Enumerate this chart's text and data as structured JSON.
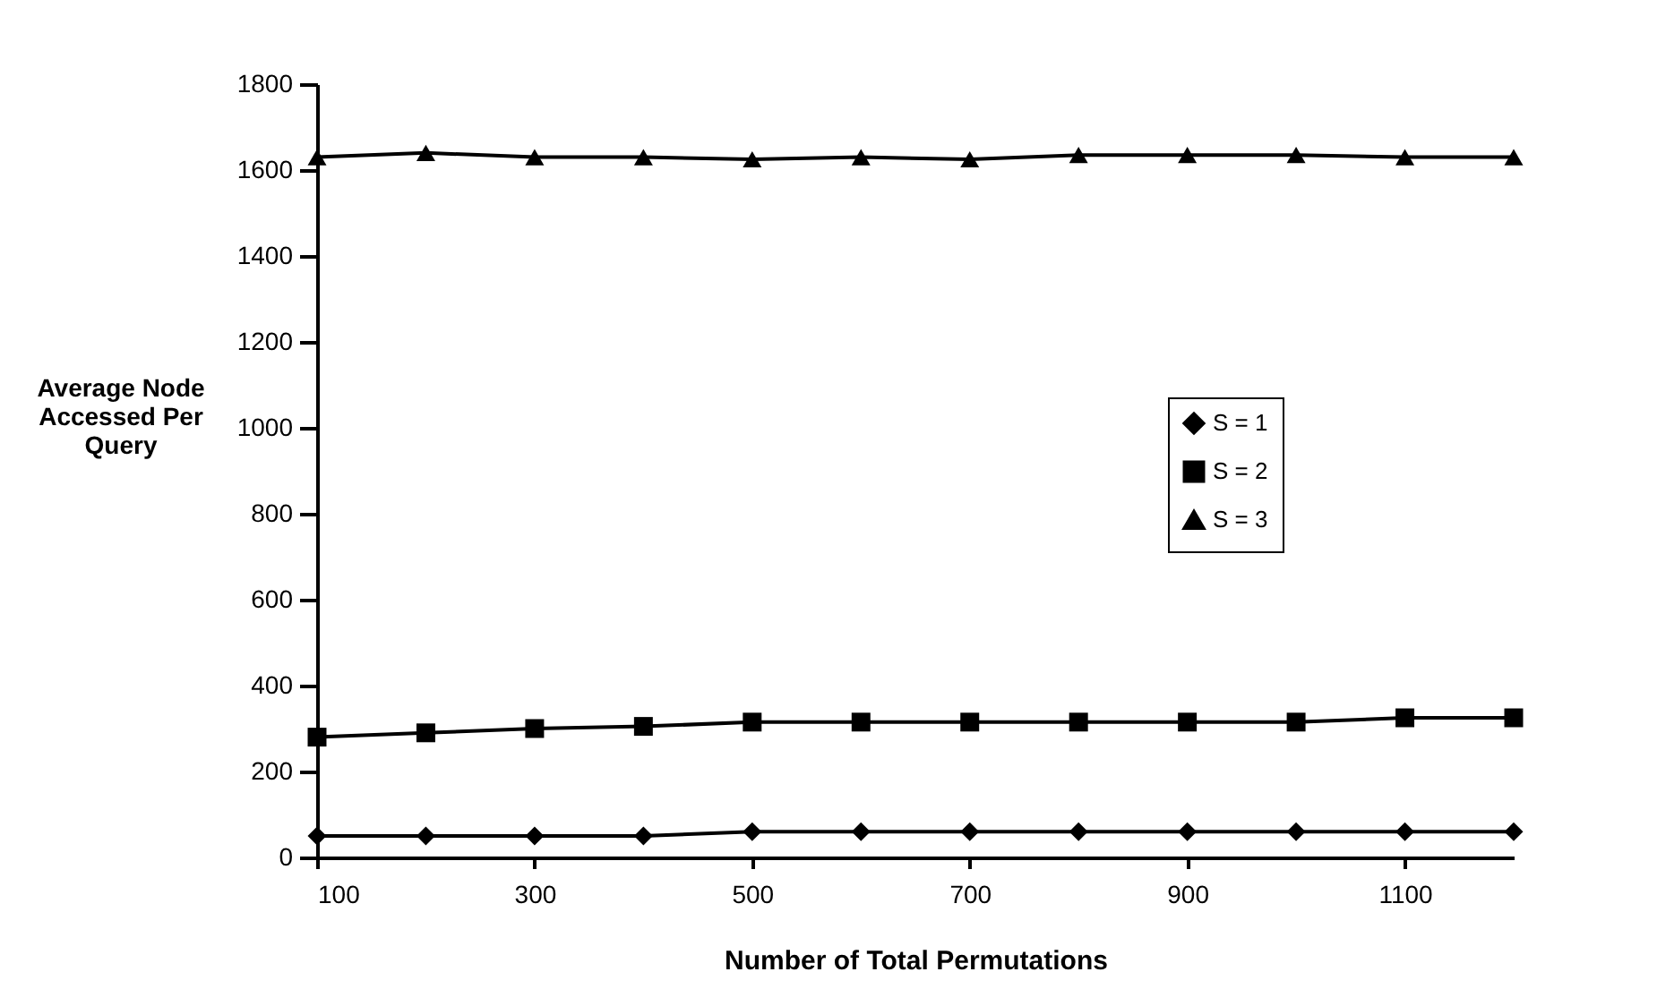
{
  "chart_data": {
    "type": "line",
    "xlabel": "Number of Total Permutations",
    "ylabel": "Average Node Accessed Per Query",
    "x": [
      100,
      200,
      300,
      400,
      500,
      600,
      700,
      800,
      900,
      1000,
      1100,
      1200
    ],
    "series": [
      {
        "name": "S = 1",
        "color": "#000000",
        "marker": "diamond",
        "values": [
          50,
          50,
          50,
          50,
          60,
          60,
          60,
          60,
          60,
          60,
          60,
          60
        ]
      },
      {
        "name": "S = 2",
        "color": "#000000",
        "marker": "square",
        "values": [
          280,
          290,
          300,
          305,
          315,
          315,
          315,
          315,
          315,
          315,
          325,
          325
        ]
      },
      {
        "name": "S = 3",
        "color": "#000000",
        "marker": "triangle",
        "values": [
          1630,
          1640,
          1630,
          1630,
          1625,
          1630,
          1625,
          1635,
          1635,
          1635,
          1630,
          1630
        ]
      }
    ],
    "xlim": [
      100,
      1200
    ],
    "xticks": [
      100,
      300,
      500,
      700,
      900,
      1100
    ],
    "ylim": [
      0,
      1800
    ],
    "yticks": [
      0,
      200,
      400,
      600,
      800,
      1000,
      1200,
      1400,
      1600,
      1800
    ],
    "grid": false,
    "legend": "right",
    "line_style": "solid"
  }
}
